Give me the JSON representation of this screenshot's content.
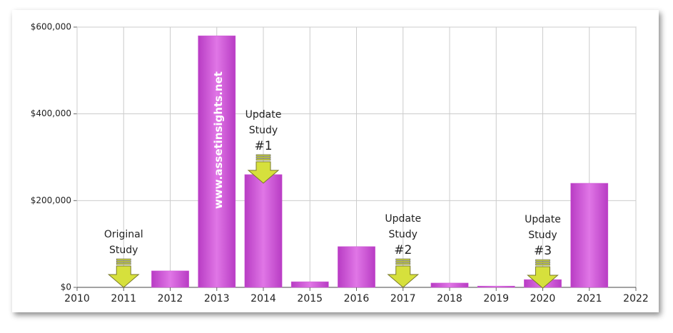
{
  "chart_data": {
    "type": "bar",
    "x": [
      2012,
      2013,
      2014,
      2015,
      2016,
      2018,
      2019,
      2020,
      2021
    ],
    "values": [
      38000,
      580000,
      260000,
      13000,
      94000,
      10000,
      3000,
      18000,
      240000
    ],
    "color": "#cc55d4",
    "xlim": [
      2010,
      2022
    ],
    "xticks": [
      2010,
      2011,
      2012,
      2013,
      2014,
      2015,
      2016,
      2017,
      2018,
      2019,
      2020,
      2021,
      2022
    ],
    "ylim": [
      0,
      600000
    ],
    "yticks": [
      {
        "value": 0,
        "label": "$0"
      },
      {
        "value": 200000,
        "label": "$200,000"
      },
      {
        "value": 400000,
        "label": "$400,000"
      },
      {
        "value": 600000,
        "label": "$600,000"
      }
    ],
    "grid": true,
    "watermark": "www.assetinsights.net",
    "annotations": [
      {
        "lines": [
          "Original",
          "Study"
        ],
        "x": 2011
      },
      {
        "lines": [
          "Update",
          "Study",
          "#1"
        ],
        "x": 2014
      },
      {
        "lines": [
          "Update",
          "Study",
          "#2"
        ],
        "x": 2017
      },
      {
        "lines": [
          "Update",
          "Study",
          "#3"
        ],
        "x": 2020
      }
    ]
  }
}
